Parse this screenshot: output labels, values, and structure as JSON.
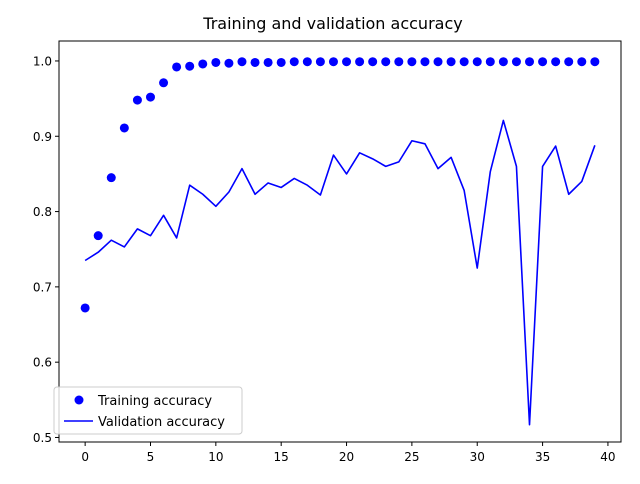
{
  "chart_data": {
    "type": "line",
    "title": "Training and validation accuracy",
    "xlabel": "",
    "ylabel": "",
    "xlim": [
      -2,
      41
    ],
    "ylim": [
      0.494,
      1.0265
    ],
    "x_ticks": [
      0,
      5,
      10,
      15,
      20,
      25,
      30,
      35,
      40
    ],
    "x_tick_labels": [
      "0",
      "5",
      "10",
      "15",
      "20",
      "25",
      "30",
      "35",
      "40"
    ],
    "y_ticks": [
      0.5,
      0.6,
      0.7,
      0.8,
      0.9,
      1.0
    ],
    "y_tick_labels": [
      "0.5",
      "0.6",
      "0.7",
      "0.8",
      "0.9",
      "1.0"
    ],
    "grid": false,
    "legend_position": "lower-left",
    "color": "#0000ff",
    "x": [
      0,
      1,
      2,
      3,
      4,
      5,
      6,
      7,
      8,
      9,
      10,
      11,
      12,
      13,
      14,
      15,
      16,
      17,
      18,
      19,
      20,
      21,
      22,
      23,
      24,
      25,
      26,
      27,
      28,
      29,
      30,
      31,
      32,
      33,
      34,
      35,
      36,
      37,
      38,
      39
    ],
    "series": [
      {
        "name": "Training accuracy",
        "style": "dots",
        "values": [
          0.672,
          0.768,
          0.845,
          0.911,
          0.948,
          0.952,
          0.971,
          0.992,
          0.993,
          0.996,
          0.998,
          0.997,
          0.999,
          0.998,
          0.998,
          0.998,
          0.999,
          0.999,
          0.999,
          0.999,
          0.999,
          0.999,
          0.999,
          0.999,
          0.999,
          0.999,
          0.999,
          0.999,
          0.999,
          0.999,
          0.999,
          0.999,
          0.999,
          0.999,
          0.999,
          0.999,
          0.999,
          0.999,
          0.999,
          0.999
        ]
      },
      {
        "name": "Validation accuracy",
        "style": "line",
        "values": [
          0.735,
          0.746,
          0.762,
          0.753,
          0.777,
          0.768,
          0.795,
          0.765,
          0.835,
          0.823,
          0.807,
          0.826,
          0.857,
          0.823,
          0.838,
          0.832,
          0.844,
          0.835,
          0.822,
          0.875,
          0.85,
          0.878,
          0.87,
          0.86,
          0.866,
          0.894,
          0.89,
          0.857,
          0.872,
          0.828,
          0.725,
          0.853,
          0.921,
          0.86,
          0.517,
          0.86,
          0.887,
          0.823,
          0.84,
          0.888
        ]
      }
    ]
  }
}
